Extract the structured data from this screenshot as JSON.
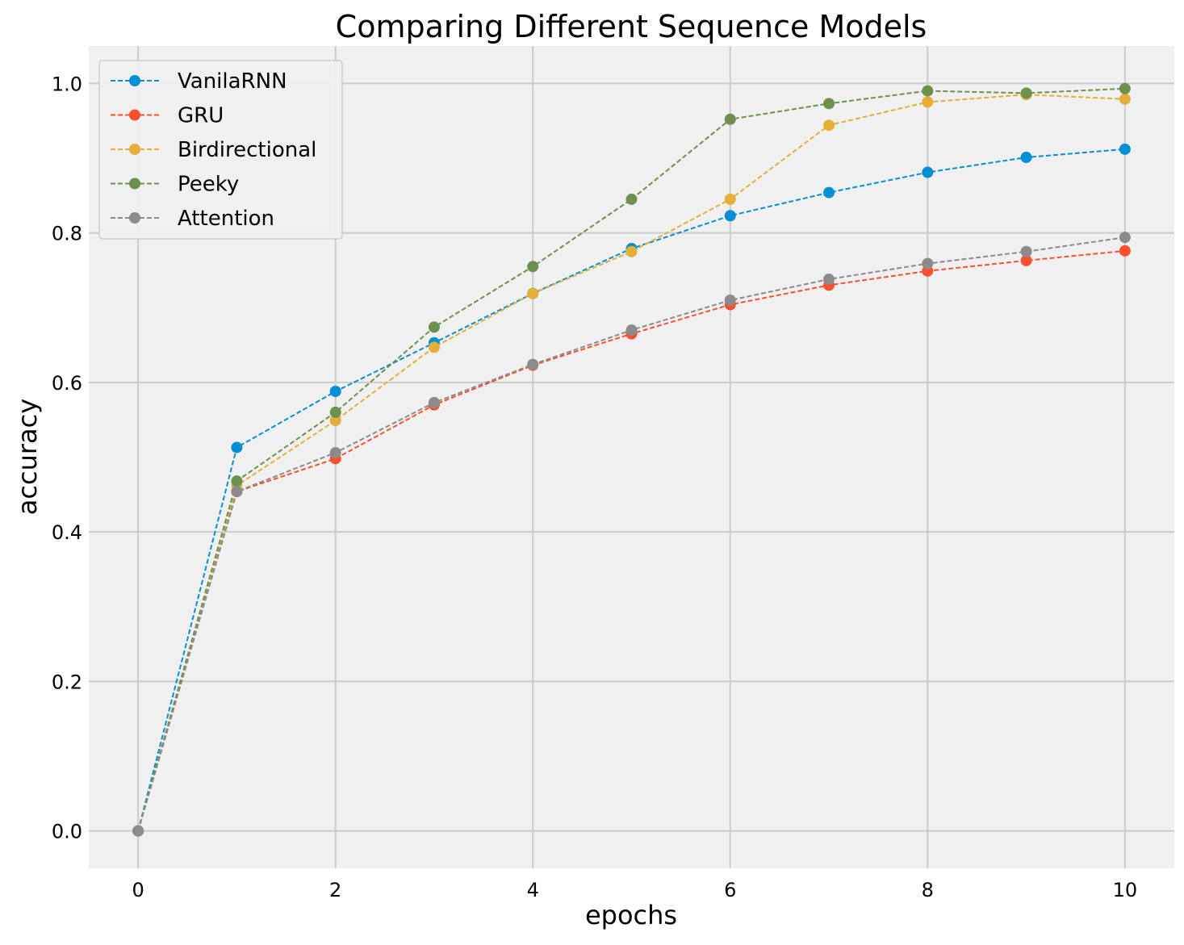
{
  "chart_data": {
    "type": "line",
    "title": "Comparing Different Sequence Models",
    "xlabel": "epochs",
    "ylabel": "accuracy",
    "xlim": [
      -0.5,
      10.5
    ],
    "ylim": [
      -0.05,
      1.05
    ],
    "x_ticks": [
      0,
      2,
      4,
      6,
      8,
      10
    ],
    "y_ticks": [
      0.0,
      0.2,
      0.4,
      0.6,
      0.8,
      1.0
    ],
    "x_tick_labels": [
      "0",
      "2",
      "4",
      "6",
      "8",
      "10"
    ],
    "y_tick_labels": [
      "0.0",
      "0.2",
      "0.4",
      "0.6",
      "0.8",
      "1.0"
    ],
    "grid": true,
    "legend_position": "top-left",
    "line_style": "dashed",
    "marker": "circle",
    "x": [
      0,
      1,
      2,
      3,
      4,
      5,
      6,
      7,
      8,
      9,
      10
    ],
    "series": [
      {
        "name": "VanilaRNN",
        "color": "#008fd5",
        "values": [
          0.0,
          0.513,
          0.588,
          0.653,
          0.719,
          0.779,
          0.823,
          0.854,
          0.881,
          0.901,
          0.912
        ]
      },
      {
        "name": "GRU",
        "color": "#fc4f30",
        "values": [
          0.0,
          0.454,
          0.498,
          0.57,
          0.623,
          0.665,
          0.704,
          0.73,
          0.749,
          0.763,
          0.776
        ]
      },
      {
        "name": "Birdirectional",
        "color": "#e5ae38",
        "values": [
          0.0,
          0.462,
          0.549,
          0.647,
          0.719,
          0.775,
          0.845,
          0.944,
          0.975,
          0.985,
          0.979
        ]
      },
      {
        "name": "Peeky",
        "color": "#6d904f",
        "values": [
          0.0,
          0.468,
          0.56,
          0.674,
          0.755,
          0.845,
          0.952,
          0.973,
          0.99,
          0.987,
          0.993
        ]
      },
      {
        "name": "Attention",
        "color": "#8b8b8b",
        "values": [
          0.0,
          0.454,
          0.506,
          0.573,
          0.624,
          0.67,
          0.71,
          0.738,
          0.759,
          0.775,
          0.794
        ]
      }
    ]
  }
}
